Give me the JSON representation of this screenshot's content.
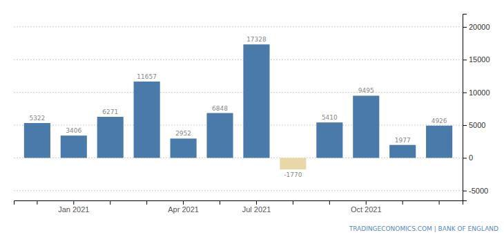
{
  "chart_data": {
    "type": "bar",
    "categories": [
      null,
      "Jan 2021",
      null,
      null,
      "Apr 2021",
      null,
      "Jul 2021",
      null,
      null,
      "Oct 2021",
      null,
      null
    ],
    "values": [
      5322,
      3406,
      6271,
      11657,
      2952,
      6848,
      17328,
      -1770,
      5410,
      9495,
      1977,
      4926
    ],
    "colors": [
      "#4a7aaa",
      "#4a7aaa",
      "#4a7aaa",
      "#4a7aaa",
      "#4a7aaa",
      "#4a7aaa",
      "#4a7aaa",
      "#e8d8a8",
      "#4a7aaa",
      "#4a7aaa",
      "#4a7aaa",
      "#4a7aaa"
    ],
    "ylim": [
      -6500,
      22000
    ],
    "yticks": [
      -5000,
      0,
      5000,
      10000,
      15000,
      20000
    ],
    "grid": true,
    "data_labels": true,
    "annotations": [
      "TRADINGECONOMICS.COM | BANK OF ENGLAND"
    ]
  }
}
